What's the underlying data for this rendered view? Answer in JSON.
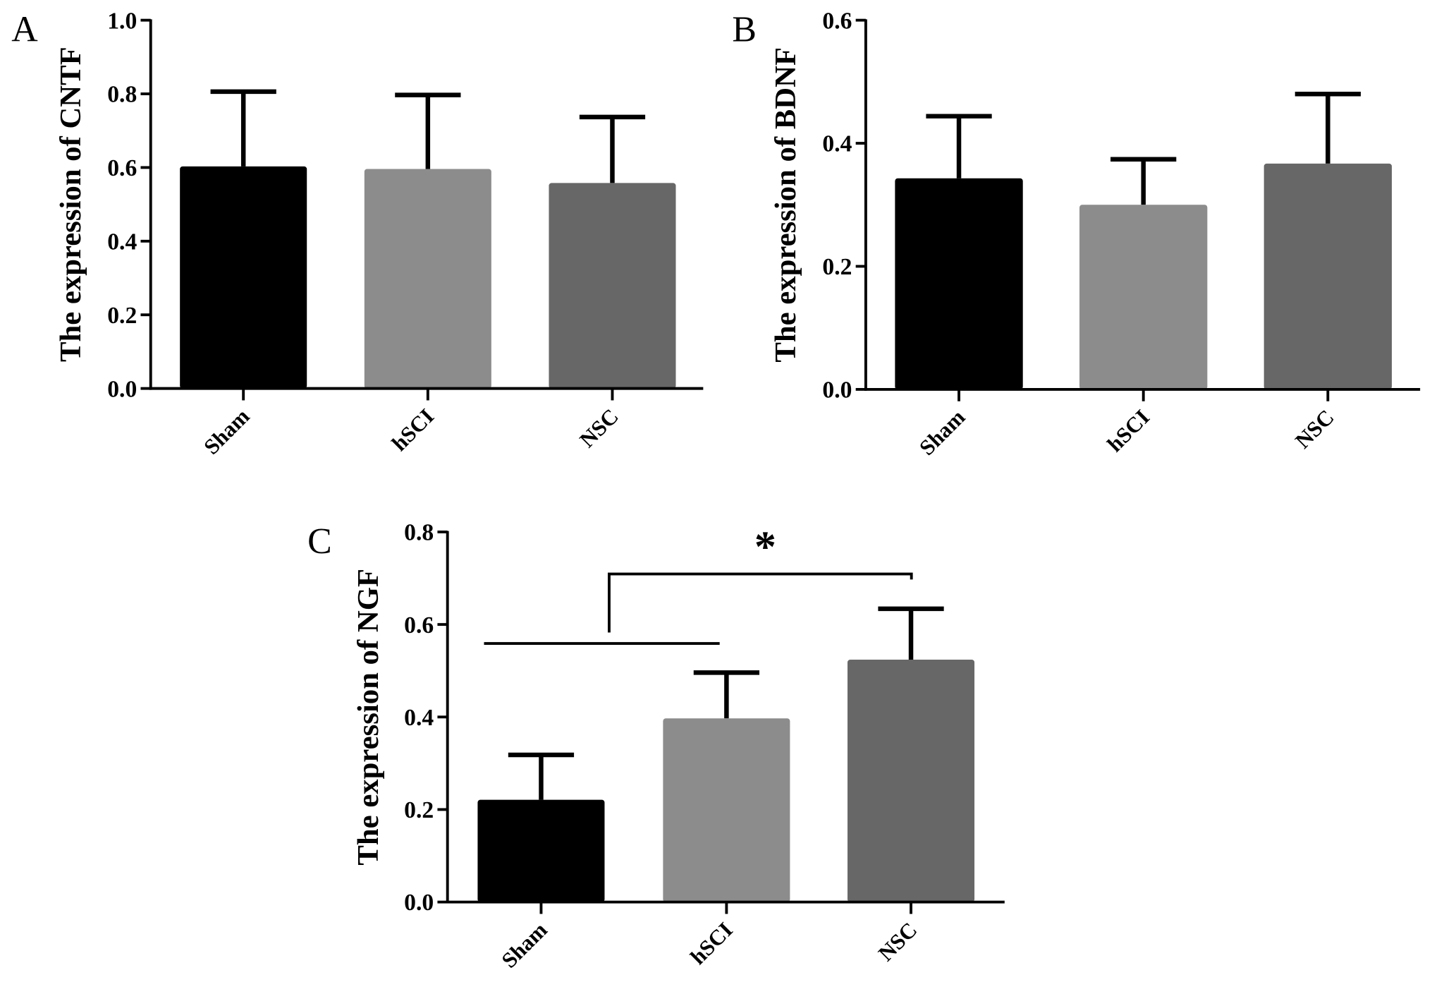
{
  "chart_data": [
    {
      "type": "bar",
      "panel_label": "A",
      "ylabel": "The expression of CNTF",
      "categories": [
        "Sham",
        "hSCI",
        "NSC"
      ],
      "values": [
        0.603,
        0.596,
        0.558
      ],
      "error_upper": [
        0.806,
        0.797,
        0.737
      ],
      "ylim": [
        0,
        1.0
      ],
      "yticks": [
        "0.0",
        "0.2",
        "0.4",
        "0.6",
        "0.8",
        "1.0"
      ],
      "colors": [
        "#000000",
        "#8c8c8c",
        "#676767"
      ],
      "grid": false
    },
    {
      "type": "bar",
      "panel_label": "B",
      "ylabel": "The expression of BDNF",
      "categories": [
        "Sham",
        "hSCI",
        "NSC"
      ],
      "values": [
        0.343,
        0.3,
        0.367
      ],
      "error_upper": [
        0.444,
        0.374,
        0.48
      ],
      "ylim": [
        0,
        0.6
      ],
      "yticks": [
        "0.0",
        "0.2",
        "0.4",
        "0.6"
      ],
      "colors": [
        "#000000",
        "#8c8c8c",
        "#676767"
      ],
      "grid": false
    },
    {
      "type": "bar",
      "panel_label": "C",
      "ylabel": "The expression of NGF",
      "categories": [
        "Sham",
        "hSCI",
        "NSC"
      ],
      "values": [
        0.221,
        0.397,
        0.524
      ],
      "error_upper": [
        0.318,
        0.496,
        0.634
      ],
      "ylim": [
        0,
        0.8
      ],
      "yticks": [
        "0.0",
        "0.2",
        "0.4",
        "0.6",
        "0.8"
      ],
      "colors": [
        "#000000",
        "#8c8c8c",
        "#676767"
      ],
      "grid": false,
      "annotation": {
        "text": "*",
        "comparison": "Sham+hSCI vs NSC"
      }
    }
  ]
}
